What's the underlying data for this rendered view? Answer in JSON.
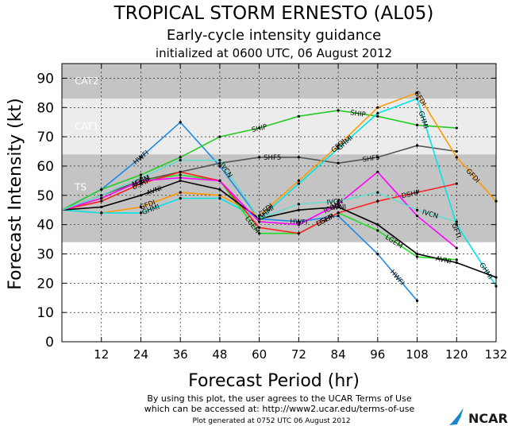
{
  "chart_data": {
    "type": "line",
    "title": "TROPICAL STORM ERNESTO (AL05)",
    "subtitle": "Early-cycle intensity guidance",
    "subtitle2": "initialized at 0600 UTC, 06 August 2012",
    "xlabel": "Forecast Period (hr)",
    "ylabel": "Forecast Intensity (kt)",
    "xlim": [
      0,
      132
    ],
    "ylim": [
      0,
      95
    ],
    "xticks": [
      12,
      24,
      36,
      48,
      60,
      72,
      84,
      96,
      108,
      120,
      132
    ],
    "yticks": [
      0,
      10,
      20,
      30,
      40,
      50,
      60,
      70,
      80,
      90
    ],
    "bands": [
      {
        "label": "CAT2",
        "from": 83,
        "to": 96,
        "color": "#c4c4c4"
      },
      {
        "label": "CAT1",
        "from": 64,
        "to": 83,
        "color": "#ececec"
      },
      {
        "label": "TS",
        "from": 34,
        "to": 64,
        "color": "#c4c4c4"
      }
    ],
    "series": [
      {
        "name": "HWFI",
        "color": "#1e88e5",
        "x": [
          0,
          12,
          24,
          36,
          48,
          60,
          72,
          84,
          96,
          108
        ],
        "values": [
          45,
          52,
          63,
          75,
          60,
          42,
          41,
          43,
          30,
          14
        ],
        "labels": [
          [
            24,
            "HWFI"
          ],
          [
            72,
            "HWFI"
          ],
          [
            102,
            "HWFI"
          ]
        ]
      },
      {
        "name": "SHIP",
        "color": "#22cc22",
        "x": [
          0,
          12,
          24,
          36,
          48,
          60,
          72,
          84,
          96,
          108,
          120
        ],
        "values": [
          45,
          52,
          57,
          63,
          70,
          73,
          77,
          79,
          77,
          74,
          73
        ],
        "labels": [
          [
            60,
            "SHIP"
          ],
          [
            90,
            "SHIP"
          ]
        ]
      },
      {
        "name": "SHF5",
        "color": "#555555",
        "x": [
          0,
          12,
          24,
          36,
          48,
          60,
          72,
          84,
          96,
          108,
          120
        ],
        "values": [
          45,
          50,
          55,
          58,
          61,
          63,
          63,
          61,
          63,
          67,
          65
        ],
        "labels": [
          [
            64,
            "SHF5"
          ],
          [
            94,
            "SHF5"
          ]
        ]
      },
      {
        "name": "GFDI",
        "color": "#ff9900",
        "x": [
          0,
          12,
          24,
          36,
          48,
          60,
          72,
          84,
          96,
          108,
          120,
          132
        ],
        "values": [
          45,
          44,
          46,
          51,
          50,
          43,
          55,
          67,
          80,
          85,
          63,
          48
        ],
        "labels": [
          [
            26,
            "GFDI"
          ],
          [
            62,
            "GFDI"
          ],
          [
            84,
            "GFDI"
          ],
          [
            109,
            "GFDI"
          ],
          [
            125,
            "GFDI"
          ]
        ]
      },
      {
        "name": "GHMI",
        "color": "#00e5e5",
        "x": [
          0,
          12,
          24,
          36,
          48,
          60,
          72,
          84,
          96,
          108,
          120,
          132
        ],
        "values": [
          45,
          44,
          44,
          49,
          49,
          42,
          54,
          66,
          78,
          83,
          40,
          19
        ],
        "labels": [
          [
            27,
            "GHMI"
          ],
          [
            62,
            "GHMI"
          ],
          [
            86,
            "GHMI"
          ],
          [
            110,
            "GHMI"
          ],
          [
            129,
            "GHMI"
          ]
        ]
      },
      {
        "name": "LGEM",
        "color": "#22dd22",
        "x": [
          0,
          12,
          24,
          36,
          48,
          60,
          72,
          84,
          96,
          108,
          120
        ],
        "values": [
          45,
          49,
          55,
          57,
          55,
          37,
          37,
          44,
          38,
          29,
          28
        ],
        "labels": [
          [
            24,
            "LGEM"
          ],
          [
            58,
            "LGEM"
          ],
          [
            80,
            "LGEM"
          ],
          [
            101,
            "LGEM"
          ]
        ]
      },
      {
        "name": "DSHP",
        "color": "#ff2020",
        "x": [
          0,
          12,
          24,
          36,
          48,
          60,
          72,
          84,
          96,
          108,
          120
        ],
        "values": [
          45,
          48,
          54,
          58,
          55,
          39,
          37,
          44,
          48,
          51,
          54
        ],
        "labels": [
          [
            24,
            "DSHP"
          ],
          [
            80,
            "DSHP"
          ],
          [
            106,
            "DSHP"
          ]
        ]
      },
      {
        "name": "AVNI",
        "color": "#000000",
        "x": [
          0,
          12,
          24,
          36,
          48,
          60,
          72,
          84,
          96,
          108,
          120,
          132
        ],
        "values": [
          45,
          46,
          50,
          55,
          52,
          42,
          45,
          46,
          40,
          30,
          27,
          22
        ],
        "labels": [
          [
            28,
            "AVNI"
          ],
          [
            84,
            "AVNI"
          ],
          [
            116,
            "AVNI"
          ]
        ]
      },
      {
        "name": "ICON",
        "color": "#ff00ff",
        "x": [
          0,
          12,
          24,
          36,
          48,
          60,
          72,
          84,
          96,
          108,
          120
        ],
        "values": [
          45,
          49,
          55,
          56,
          55,
          41,
          40,
          47,
          58,
          43,
          32
        ],
        "labels": [
          [
            24,
            "ICON"
          ],
          [
            82,
            "ICON"
          ]
        ]
      },
      {
        "name": "IVCN",
        "color": "#66ddcc",
        "x": [
          0,
          12,
          24,
          36,
          48,
          60,
          72,
          84,
          96,
          108,
          120
        ],
        "values": [
          45,
          50,
          56,
          62,
          62,
          42,
          47,
          48,
          51,
          45,
          41
        ],
        "labels": [
          [
            50,
            "IVCN"
          ],
          [
            83,
            "IVCN"
          ],
          [
            112,
            "IVCN"
          ]
        ]
      }
    ],
    "scatter_labels": [
      {
        "x": 120,
        "y": 38,
        "text": "GFTI",
        "color": "#000000"
      }
    ]
  },
  "footer": {
    "line1": "By using this plot, the user agrees to the UCAR Terms of Use",
    "line2": "which can be accessed at: http://www2.ucar.edu/terms-of-use",
    "line3": "Plot generated at 0752 UTC  06 August 2012"
  },
  "logo": {
    "text": "NCAR",
    "icon": "ncar-sun-icon"
  }
}
